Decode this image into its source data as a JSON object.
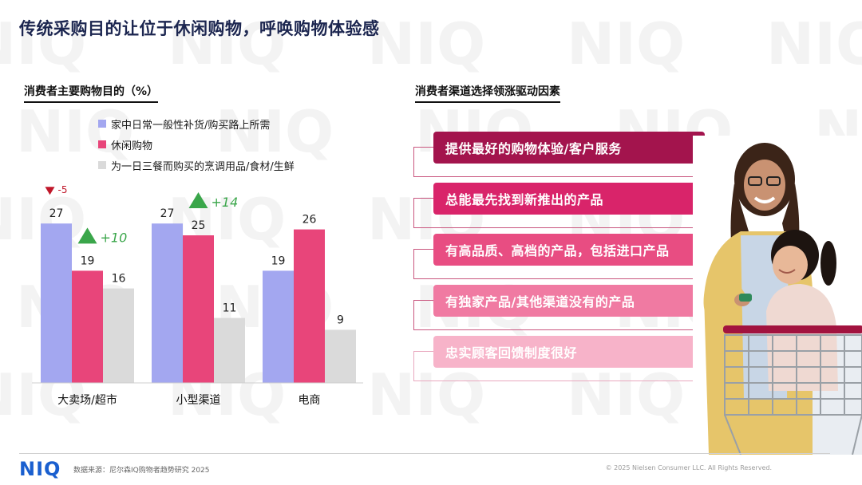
{
  "title": "传统采购目的让位于休闲购物，呼唤购物体验感",
  "left_section_title": "消费者主要购物目的（%）",
  "right_section_title": "消费者渠道选择领涨驱动因素",
  "watermark_text": "NIQ",
  "chart_data": {
    "type": "bar",
    "categories": [
      "大卖场/超市",
      "小型渠道",
      "电商"
    ],
    "series": [
      {
        "name": "家中日常一般性补货/购买路上所需",
        "values": [
          27,
          27,
          19
        ],
        "color": "#a3a7f0"
      },
      {
        "name": "休闲购物",
        "values": [
          19,
          25,
          26
        ],
        "color": "#e8457a"
      },
      {
        "name": "为一日三餐而购买的烹调用品/食材/生鲜",
        "values": [
          16,
          11,
          9
        ],
        "color": "#dadada"
      }
    ],
    "annotations": [
      {
        "category": "大卖场/超市",
        "series": "家中日常一般性补货/购买路上所需",
        "direction": "down",
        "text": "-5",
        "color": "#c0172a"
      },
      {
        "category": "大卖场/超市",
        "series": "休闲购物",
        "direction": "up",
        "text": "+10",
        "color": "#3aa64a"
      },
      {
        "category": "小型渠道",
        "series": "休闲购物",
        "direction": "up",
        "text": "+14",
        "color": "#3aa64a"
      }
    ],
    "ylim": [
      0,
      30
    ]
  },
  "drivers": [
    {
      "label": "提供最好的购物体验/客户服务",
      "color": "#a3144d"
    },
    {
      "label": "总能最先找到新推出的产品",
      "color": "#d9246a"
    },
    {
      "label": "有高品质、高档的产品，包括进口产品",
      "color": "#e84d82"
    },
    {
      "label": "有独家产品/其他渠道没有的产品",
      "color": "#f07aa2"
    },
    {
      "label": "忠实顾客回馈制度很好",
      "color": "#f7b3c9"
    }
  ],
  "footer": {
    "logo": "NIQ",
    "source": "数据来源：尼尔森IQ购物者趋势研究 2025",
    "copyright": "© 2025 Nielsen Consumer LLC. All Rights Reserved."
  }
}
